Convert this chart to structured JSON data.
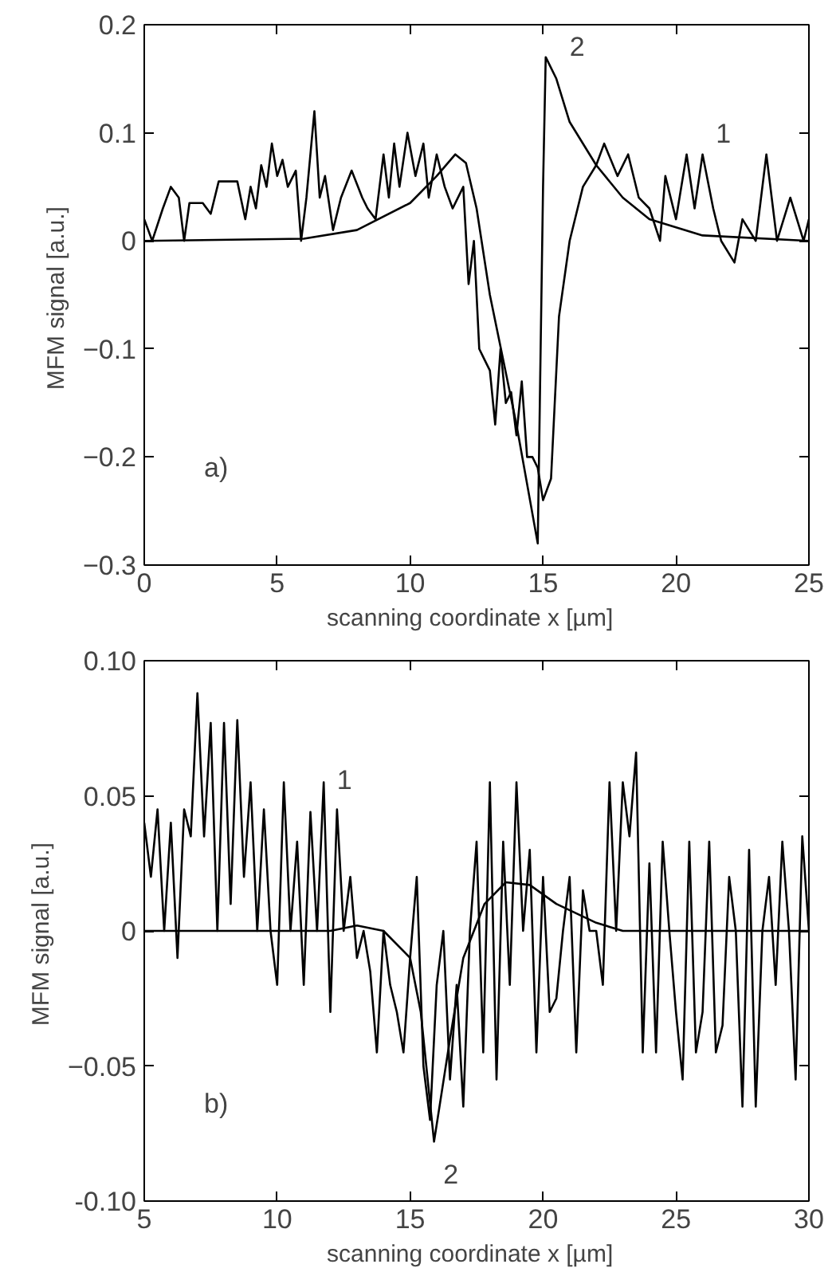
{
  "chart_data": [
    {
      "type": "line",
      "xlabel": "scanning coordinate  x  [µm]",
      "ylabel": "MFM signal  [a.u.]",
      "xlim": [
        0,
        25
      ],
      "ylim": [
        -0.3,
        0.2
      ],
      "xticks": [
        0,
        5,
        10,
        15,
        20,
        25
      ],
      "yticks": [
        -0.3,
        -0.2,
        -0.1,
        0,
        0.1,
        0.2
      ],
      "grid": false,
      "marker": "none",
      "line_style": "solid",
      "series": [
        {
          "color": "#000000",
          "x": [
            0,
            0.3,
            0.7,
            1.0,
            1.3,
            1.5,
            1.7,
            2.2,
            2.5,
            2.8,
            3.5,
            3.8,
            4.0,
            4.2,
            4.4,
            4.6,
            4.8,
            5.0,
            5.2,
            5.4,
            5.7,
            5.9,
            6.1,
            6.4,
            6.6,
            6.8,
            7.1,
            7.4,
            7.8,
            8.2,
            8.4,
            8.7,
            9.0,
            9.2,
            9.4,
            9.6,
            9.9,
            10.2,
            10.5,
            10.7,
            11.0,
            11.3,
            11.6,
            12.0,
            12.2,
            12.4,
            12.6,
            12.8,
            13.0,
            13.2,
            13.4,
            13.6,
            13.8,
            14.0,
            14.2,
            14.4,
            14.6,
            14.8,
            15.0,
            15.3,
            15.6,
            16.0,
            16.5,
            17.0,
            17.3,
            17.8,
            18.2,
            18.6,
            19.0,
            19.4,
            19.6,
            20.0,
            20.4,
            20.7,
            21.0,
            21.4,
            21.7,
            22.2,
            22.5,
            23.0,
            23.4,
            23.8,
            24.3,
            24.8,
            25.0
          ],
          "values": [
            0.02,
            0.0,
            0.03,
            0.05,
            0.04,
            0.0,
            0.035,
            0.035,
            0.025,
            0.055,
            0.055,
            0.02,
            0.05,
            0.03,
            0.07,
            0.05,
            0.09,
            0.06,
            0.075,
            0.05,
            0.065,
            0.0,
            0.04,
            0.12,
            0.04,
            0.06,
            0.01,
            0.04,
            0.065,
            0.04,
            0.03,
            0.02,
            0.08,
            0.04,
            0.09,
            0.05,
            0.1,
            0.06,
            0.09,
            0.04,
            0.08,
            0.05,
            0.03,
            0.05,
            -0.04,
            0.0,
            -0.1,
            -0.11,
            -0.12,
            -0.17,
            -0.1,
            -0.15,
            -0.14,
            -0.18,
            -0.13,
            -0.2,
            -0.2,
            -0.21,
            -0.24,
            -0.22,
            -0.07,
            0.0,
            0.05,
            0.07,
            0.09,
            0.06,
            0.08,
            0.04,
            0.03,
            0.0,
            0.06,
            0.02,
            0.08,
            0.03,
            0.08,
            0.03,
            0.0,
            -0.02,
            0.02,
            0.0,
            0.08,
            0.0,
            0.04,
            0.0,
            0.02
          ]
        },
        {
          "color": "#000000",
          "x": [
            0,
            6,
            8,
            10,
            11,
            11.7,
            12.1,
            12.5,
            13,
            14,
            14.8,
            15.0,
            15.1,
            15.5,
            16,
            17,
            18,
            19,
            21,
            25
          ],
          "values": [
            0,
            0.002,
            0.01,
            0.035,
            0.06,
            0.08,
            0.072,
            0.03,
            -0.05,
            -0.17,
            -0.28,
            0.05,
            0.17,
            0.15,
            0.11,
            0.07,
            0.04,
            0.02,
            0.005,
            0
          ]
        }
      ],
      "annotations": [
        "1",
        "2",
        "a)"
      ]
    },
    {
      "type": "line",
      "xlabel": "scanning coordinate  x  [µm]",
      "ylabel": "MFM signal  [a.u.]",
      "xlim": [
        5,
        30
      ],
      "ylim": [
        -0.1,
        0.1
      ],
      "xticks": [
        5,
        10,
        15,
        20,
        25,
        30
      ],
      "yticks": [
        {
          "value": -0.1,
          "label": "-0.10"
        },
        -0.05,
        0,
        0.05,
        {
          "value": 0.1,
          "label": "0.10"
        }
      ],
      "grid": false,
      "marker": "none",
      "line_style": "solid",
      "series": [
        {
          "color": "#000000",
          "x": [
            5.0,
            5.25,
            5.5,
            5.75,
            6.0,
            6.25,
            6.5,
            6.75,
            7.0,
            7.25,
            7.5,
            7.75,
            8.0,
            8.25,
            8.5,
            8.75,
            9.0,
            9.25,
            9.5,
            9.75,
            10.0,
            10.25,
            10.5,
            10.75,
            11.0,
            11.25,
            11.5,
            11.75,
            12.0,
            12.25,
            12.5,
            12.75,
            13.0,
            13.25,
            13.5,
            13.75,
            14.0,
            14.25,
            14.5,
            14.75,
            15.0,
            15.25,
            15.5,
            15.75,
            16.0,
            16.25,
            16.5,
            16.75,
            17.0,
            17.25,
            17.5,
            17.75,
            18.0,
            18.25,
            18.5,
            18.75,
            19.0,
            19.25,
            19.5,
            19.75,
            20.0,
            20.25,
            20.5,
            20.75,
            21.0,
            21.25,
            21.5,
            21.75,
            22.0,
            22.25,
            22.5,
            22.75,
            23.0,
            23.25,
            23.5,
            23.75,
            24.0,
            24.25,
            24.5,
            24.75,
            25.0,
            25.25,
            25.5,
            25.75,
            26.0,
            26.25,
            26.5,
            26.75,
            27.0,
            27.25,
            27.5,
            27.75,
            28.0,
            28.25,
            28.5,
            28.75,
            29.0,
            29.25,
            29.5,
            29.75,
            30.0
          ],
          "values": [
            0.04,
            0.02,
            0.045,
            0.0,
            0.04,
            -0.01,
            0.045,
            0.035,
            0.088,
            0.035,
            0.077,
            0.0,
            0.077,
            0.01,
            0.078,
            0.02,
            0.055,
            0.0,
            0.045,
            0.0,
            -0.02,
            0.055,
            0.0,
            0.033,
            -0.02,
            0.044,
            0.0,
            0.055,
            -0.03,
            0.045,
            0.0,
            0.02,
            -0.01,
            0.0,
            -0.015,
            -0.045,
            0.0,
            -0.02,
            -0.03,
            -0.045,
            -0.01,
            0.02,
            -0.05,
            -0.07,
            -0.02,
            0.0,
            -0.055,
            -0.02,
            -0.065,
            0.0,
            0.033,
            -0.045,
            0.055,
            -0.055,
            0.033,
            -0.02,
            0.055,
            0.0,
            0.03,
            -0.045,
            0.02,
            -0.03,
            -0.025,
            0.0,
            0.02,
            -0.045,
            0.015,
            0.0,
            0.0,
            -0.02,
            0.055,
            0.0,
            0.055,
            0.035,
            0.066,
            -0.045,
            0.025,
            -0.045,
            0.033,
            0.0,
            -0.03,
            -0.055,
            0.033,
            -0.045,
            -0.03,
            0.033,
            -0.045,
            -0.035,
            0.02,
            0.0,
            -0.065,
            0.03,
            -0.065,
            0.0,
            0.02,
            -0.02,
            0.033,
            0.0,
            -0.055,
            0.035,
            0.0
          ]
        },
        {
          "color": "#000000",
          "x": [
            5,
            12,
            13,
            14,
            15,
            15.4,
            15.9,
            16.5,
            17,
            17.8,
            18.6,
            19.5,
            20.5,
            22,
            23,
            30
          ],
          "values": [
            0,
            0,
            0.002,
            0,
            -0.01,
            -0.03,
            -0.078,
            -0.04,
            -0.01,
            0.01,
            0.018,
            0.017,
            0.01,
            0.003,
            0,
            0
          ]
        }
      ],
      "annotations": [
        "1",
        "2",
        "b)"
      ]
    }
  ]
}
